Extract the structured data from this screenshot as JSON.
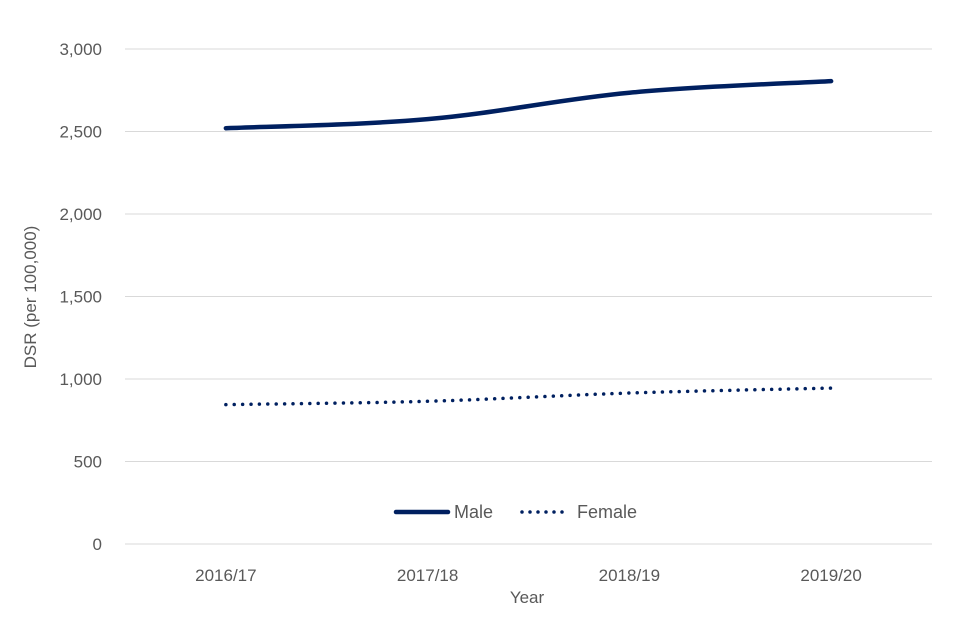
{
  "chart_data": {
    "type": "line",
    "xlabel": "Year",
    "ylabel": "DSR (per 100,000)",
    "categories": [
      "2016/17",
      "2017/18",
      "2018/19",
      "2019/20"
    ],
    "ylim": [
      0,
      3000
    ],
    "yticks": [
      0,
      500,
      1000,
      1500,
      2000,
      2500,
      3000
    ],
    "ytick_labels": [
      "0",
      "500",
      "1,000",
      "1,500",
      "2,000",
      "2,500",
      "3,000"
    ],
    "grid": true,
    "legend_position": "bottom-inside",
    "series": [
      {
        "name": "Male",
        "values": [
          2520,
          2575,
          2735,
          2805
        ],
        "color": "#002060",
        "style": "solid"
      },
      {
        "name": "Female",
        "values": [
          845,
          865,
          915,
          945
        ],
        "color": "#002060",
        "style": "dotted"
      }
    ]
  }
}
